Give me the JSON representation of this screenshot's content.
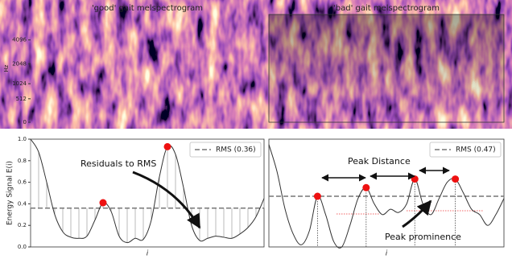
{
  "chart_data": [
    {
      "type": "heatmap",
      "title": "'good' gait melspectrogram",
      "y_label": "Hz",
      "yscale": "mel",
      "ylim": [
        0,
        8000
      ],
      "yticks": [
        0,
        512,
        1024,
        2048,
        4096
      ]
    },
    {
      "type": "heatmap",
      "title": "'bad' gait melspectrogram",
      "yscale": "mel",
      "ylim": [
        0,
        8000
      ]
    },
    {
      "type": "line",
      "y_label": "Energy Signal E(i)",
      "x_label": "i",
      "ylim": [
        0,
        1
      ],
      "yticks": [
        {
          "value": 0,
          "label": "0.0"
        },
        {
          "value": 0.2,
          "label": "0.2"
        },
        {
          "value": 0.4,
          "label": "0.4"
        },
        {
          "value": 0.6,
          "label": "0.6"
        },
        {
          "value": 0.8,
          "label": "0.8"
        },
        {
          "value": 1,
          "label": "1.0"
        }
      ],
      "values": [
        1.0,
        0.88,
        0.6,
        0.3,
        0.14,
        0.09,
        0.08,
        0.1,
        0.25,
        0.41,
        0.33,
        0.1,
        0.04,
        0.08,
        0.07,
        0.25,
        0.65,
        0.93,
        0.86,
        0.55,
        0.2,
        0.06,
        0.08,
        0.1,
        0.09,
        0.08,
        0.12,
        0.18,
        0.28,
        0.45
      ],
      "color": "#333333",
      "rms": 0.36,
      "rms_color": "#777777",
      "legend_label": "RMS (0.36)",
      "legend": "upper right",
      "peaks": [
        9,
        17
      ],
      "peak_color": "#ee1111",
      "residuals": true,
      "annotation": "Residuals to RMS"
    },
    {
      "type": "line",
      "x_label": "i",
      "ylim": [
        0,
        1
      ],
      "values": [
        0.95,
        0.7,
        0.35,
        0.12,
        0.02,
        0.15,
        0.47,
        0.3,
        0.05,
        0.0,
        0.2,
        0.45,
        0.55,
        0.4,
        0.3,
        0.35,
        0.32,
        0.4,
        0.63,
        0.4,
        0.3,
        0.45,
        0.6,
        0.63,
        0.5,
        0.35,
        0.3,
        0.2,
        0.3,
        0.45
      ],
      "color": "#333333",
      "rms": 0.47,
      "rms_color": "#777777",
      "legend_label": "RMS (0.47)",
      "legend": "upper right",
      "peaks": [
        6,
        12,
        18,
        23
      ],
      "peak_color": "#ee1111",
      "annotations": [
        "Peak Distance",
        "Peak prominence"
      ]
    }
  ]
}
